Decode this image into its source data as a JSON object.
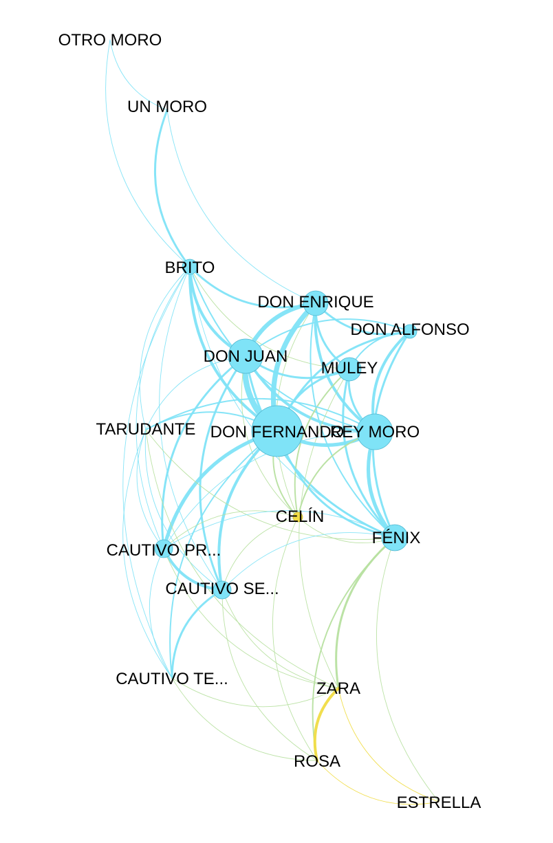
{
  "colors": {
    "blue": "#7fe3f7",
    "blue_node": "#7fe3f7",
    "blue_node_stroke": "#4fb6cf",
    "green": "#b7e0a0",
    "yellow": "#f0dc45",
    "label": "#000000",
    "background": "#ffffff"
  },
  "nodes": [
    {
      "id": "otro-moro",
      "label": "OTRO MORO",
      "group": "blue"
    },
    {
      "id": "un-moro",
      "label": "UN MORO",
      "group": "blue"
    },
    {
      "id": "brito",
      "label": "BRITO",
      "group": "blue"
    },
    {
      "id": "don-enrique",
      "label": "DON ENRIQUE",
      "group": "blue"
    },
    {
      "id": "don-alfonso",
      "label": "DON ALFONSO",
      "group": "blue"
    },
    {
      "id": "don-juan",
      "label": "DON JUAN",
      "group": "blue"
    },
    {
      "id": "muley",
      "label": "MULEY",
      "group": "blue"
    },
    {
      "id": "tarudante",
      "label": "TARUDANTE",
      "group": "blue"
    },
    {
      "id": "don-fernando",
      "label": "DON FERNANDO",
      "group": "blue"
    },
    {
      "id": "rey-moro",
      "label": "REY MORO",
      "group": "blue"
    },
    {
      "id": "celin",
      "label": "CELÍN",
      "group": "yellow"
    },
    {
      "id": "fenix",
      "label": "FÉNIX",
      "group": "blue"
    },
    {
      "id": "cautivo-pr",
      "label": "CAUTIVO PR...",
      "group": "blue"
    },
    {
      "id": "cautivo-se",
      "label": "CAUTIVO SE...",
      "group": "blue"
    },
    {
      "id": "cautivo-te",
      "label": "CAUTIVO TE...",
      "group": "blue"
    },
    {
      "id": "zara",
      "label": "ZARA",
      "group": "yellow"
    },
    {
      "id": "rosa",
      "label": "ROSA",
      "group": "yellow"
    },
    {
      "id": "estrella",
      "label": "ESTRELLA",
      "group": "yellow"
    }
  ],
  "edges": [
    {
      "source": "otro-moro",
      "target": "un-moro",
      "weight": 1,
      "color": "blue"
    },
    {
      "source": "otro-moro",
      "target": "brito",
      "weight": 1,
      "color": "blue"
    },
    {
      "source": "un-moro",
      "target": "brito",
      "weight": 3,
      "color": "blue"
    },
    {
      "source": "un-moro",
      "target": "don-enrique",
      "weight": 1,
      "color": "blue"
    },
    {
      "source": "brito",
      "target": "don-enrique",
      "weight": 3,
      "color": "blue"
    },
    {
      "source": "brito",
      "target": "don-juan",
      "weight": 4,
      "color": "blue"
    },
    {
      "source": "brito",
      "target": "don-fernando",
      "weight": 4,
      "color": "blue"
    },
    {
      "source": "brito",
      "target": "rey-moro",
      "weight": 2,
      "color": "blue"
    },
    {
      "source": "brito",
      "target": "muley",
      "weight": 1,
      "color": "green"
    },
    {
      "source": "brito",
      "target": "fenix",
      "weight": 1,
      "color": "blue"
    },
    {
      "source": "brito",
      "target": "tarudante",
      "weight": 1,
      "color": "blue"
    },
    {
      "source": "brito",
      "target": "cautivo-pr",
      "weight": 1,
      "color": "blue"
    },
    {
      "source": "brito",
      "target": "cautivo-se",
      "weight": 1,
      "color": "blue"
    },
    {
      "source": "brito",
      "target": "cautivo-te",
      "weight": 1,
      "color": "blue"
    },
    {
      "source": "don-enrique",
      "target": "don-alfonso",
      "weight": 3,
      "color": "blue"
    },
    {
      "source": "don-enrique",
      "target": "don-juan",
      "weight": 6,
      "color": "blue"
    },
    {
      "source": "don-enrique",
      "target": "don-fernando",
      "weight": 7,
      "color": "blue"
    },
    {
      "source": "don-enrique",
      "target": "muley",
      "weight": 3,
      "color": "blue"
    },
    {
      "source": "don-enrique",
      "target": "rey-moro",
      "weight": 4,
      "color": "blue"
    },
    {
      "source": "don-enrique",
      "target": "fenix",
      "weight": 2,
      "color": "blue"
    },
    {
      "source": "don-enrique",
      "target": "celin",
      "weight": 1,
      "color": "green"
    },
    {
      "source": "don-alfonso",
      "target": "don-juan",
      "weight": 2,
      "color": "blue"
    },
    {
      "source": "don-alfonso",
      "target": "don-fernando",
      "weight": 3,
      "color": "blue"
    },
    {
      "source": "don-alfonso",
      "target": "rey-moro",
      "weight": 4,
      "color": "blue"
    },
    {
      "source": "don-alfonso",
      "target": "muley",
      "weight": 2,
      "color": "blue"
    },
    {
      "source": "don-alfonso",
      "target": "fenix",
      "weight": 3,
      "color": "blue"
    },
    {
      "source": "don-juan",
      "target": "don-fernando",
      "weight": 8,
      "color": "blue"
    },
    {
      "source": "don-juan",
      "target": "muley",
      "weight": 3,
      "color": "blue"
    },
    {
      "source": "don-juan",
      "target": "rey-moro",
      "weight": 4,
      "color": "blue"
    },
    {
      "source": "don-juan",
      "target": "fenix",
      "weight": 3,
      "color": "blue"
    },
    {
      "source": "don-juan",
      "target": "tarudante",
      "weight": 1,
      "color": "blue"
    },
    {
      "source": "don-juan",
      "target": "cautivo-pr",
      "weight": 3,
      "color": "blue"
    },
    {
      "source": "don-juan",
      "target": "cautivo-se",
      "weight": 3,
      "color": "blue"
    },
    {
      "source": "don-juan",
      "target": "celin",
      "weight": 1,
      "color": "green"
    },
    {
      "source": "muley",
      "target": "don-fernando",
      "weight": 3,
      "color": "blue"
    },
    {
      "source": "muley",
      "target": "rey-moro",
      "weight": 3,
      "color": "blue"
    },
    {
      "source": "muley",
      "target": "fenix",
      "weight": 3,
      "color": "blue"
    },
    {
      "source": "muley",
      "target": "celin",
      "weight": 2,
      "color": "green"
    },
    {
      "source": "muley",
      "target": "zara",
      "weight": 1,
      "color": "green"
    },
    {
      "source": "don-fernando",
      "target": "rey-moro",
      "weight": 5,
      "color": "blue"
    },
    {
      "source": "don-fernando",
      "target": "fenix",
      "weight": 3,
      "color": "blue"
    },
    {
      "source": "don-fernando",
      "target": "tarudante",
      "weight": 2,
      "color": "blue"
    },
    {
      "source": "don-fernando",
      "target": "cautivo-pr",
      "weight": 5,
      "color": "blue"
    },
    {
      "source": "don-fernando",
      "target": "cautivo-se",
      "weight": 4,
      "color": "blue"
    },
    {
      "source": "don-fernando",
      "target": "cautivo-te",
      "weight": 2,
      "color": "blue"
    },
    {
      "source": "don-fernando",
      "target": "celin",
      "weight": 2,
      "color": "green"
    },
    {
      "source": "rey-moro",
      "target": "fenix",
      "weight": 5,
      "color": "blue"
    },
    {
      "source": "rey-moro",
      "target": "tarudante",
      "weight": 2,
      "color": "blue"
    },
    {
      "source": "rey-moro",
      "target": "celin",
      "weight": 2,
      "color": "green"
    },
    {
      "source": "rey-moro",
      "target": "cautivo-pr",
      "weight": 1,
      "color": "blue"
    },
    {
      "source": "tarudante",
      "target": "fenix",
      "weight": 1,
      "color": "green"
    },
    {
      "source": "tarudante",
      "target": "cautivo-pr",
      "weight": 1,
      "color": "blue"
    },
    {
      "source": "tarudante",
      "target": "cautivo-se",
      "weight": 1,
      "color": "blue"
    },
    {
      "source": "tarudante",
      "target": "cautivo-te",
      "weight": 1,
      "color": "blue"
    },
    {
      "source": "tarudante",
      "target": "zara",
      "weight": 1,
      "color": "green"
    },
    {
      "source": "celin",
      "target": "fenix",
      "weight": 1,
      "color": "green"
    },
    {
      "source": "celin",
      "target": "cautivo-pr",
      "weight": 1,
      "color": "green"
    },
    {
      "source": "celin",
      "target": "cautivo-se",
      "weight": 1,
      "color": "green"
    },
    {
      "source": "celin",
      "target": "rosa",
      "weight": 1,
      "color": "green"
    },
    {
      "source": "fenix",
      "target": "cautivo-pr",
      "weight": 1,
      "color": "blue"
    },
    {
      "source": "fenix",
      "target": "cautivo-se",
      "weight": 1,
      "color": "blue"
    },
    {
      "source": "fenix",
      "target": "zara",
      "weight": 3,
      "color": "green"
    },
    {
      "source": "fenix",
      "target": "rosa",
      "weight": 2,
      "color": "green"
    },
    {
      "source": "fenix",
      "target": "estrella",
      "weight": 1,
      "color": "green"
    },
    {
      "source": "cautivo-pr",
      "target": "cautivo-se",
      "weight": 4,
      "color": "blue"
    },
    {
      "source": "cautivo-pr",
      "target": "cautivo-te",
      "weight": 1,
      "color": "blue"
    },
    {
      "source": "cautivo-pr",
      "target": "zara",
      "weight": 1,
      "color": "green"
    },
    {
      "source": "cautivo-se",
      "target": "cautivo-te",
      "weight": 3,
      "color": "blue"
    },
    {
      "source": "cautivo-se",
      "target": "zara",
      "weight": 1,
      "color": "green"
    },
    {
      "source": "cautivo-se",
      "target": "rosa",
      "weight": 1,
      "color": "green"
    },
    {
      "source": "cautivo-te",
      "target": "zara",
      "weight": 1,
      "color": "green"
    },
    {
      "source": "cautivo-te",
      "target": "rosa",
      "weight": 1,
      "color": "green"
    },
    {
      "source": "zara",
      "target": "rosa",
      "weight": 4,
      "color": "yellow"
    },
    {
      "source": "zara",
      "target": "estrella",
      "weight": 1,
      "color": "yellow"
    },
    {
      "source": "rosa",
      "target": "estrella",
      "weight": 1,
      "color": "yellow"
    }
  ]
}
